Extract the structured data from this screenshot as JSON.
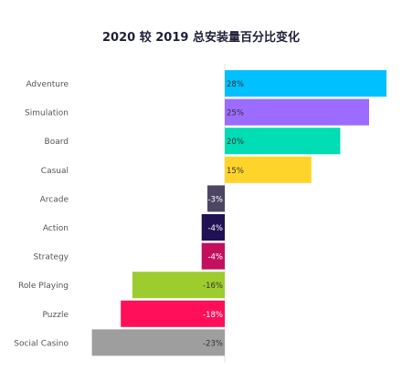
{
  "chart_data": {
    "type": "bar",
    "orientation": "horizontal",
    "title": "2020 较 2019 总安装量百分比变化",
    "categories": [
      "Adventure",
      "Simulation",
      "Board",
      "Casual",
      "Arcade",
      "Action",
      "Strategy",
      "Role Playing",
      "Puzzle",
      "Social Casino"
    ],
    "values": [
      28,
      25,
      20,
      15,
      -3,
      -4,
      -4,
      -16,
      -18,
      -23
    ],
    "value_labels": [
      "28%",
      "25%",
      "20%",
      "15%",
      "-3%",
      "-4%",
      "-4%",
      "-16%",
      "-18%",
      "-23%"
    ],
    "colors": [
      "#00c0ff",
      "#9b6cff",
      "#00dcb4",
      "#ffd42a",
      "#4d4662",
      "#1f1154",
      "#c3105e",
      "#9dcc2e",
      "#ff0f5a",
      "#9e9e9e"
    ],
    "label_colors": [
      "#333333",
      "#333333",
      "#333333",
      "#333333",
      "#ffffff",
      "#ffffff",
      "#ffffff",
      "#333333",
      "#ffffff",
      "#333333"
    ],
    "xlim": [
      -23,
      28
    ],
    "grid": false,
    "legend": "none"
  }
}
